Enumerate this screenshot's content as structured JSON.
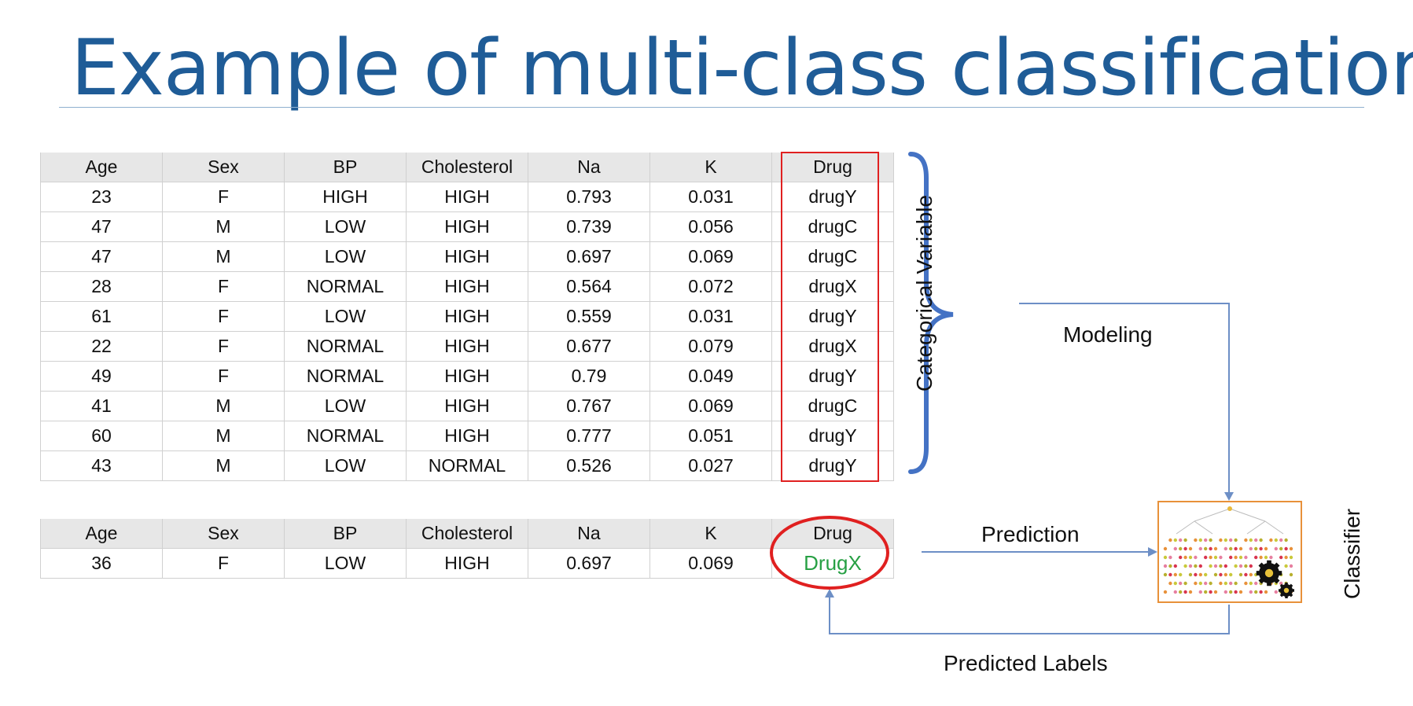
{
  "title": "Example of multi-class classification",
  "columns": [
    "Age",
    "Sex",
    "BP",
    "Cholesterol",
    "Na",
    "K",
    "Drug"
  ],
  "train_rows": [
    [
      "23",
      "F",
      "HIGH",
      "HIGH",
      "0.793",
      "0.031",
      "drugY"
    ],
    [
      "47",
      "M",
      "LOW",
      "HIGH",
      "0.739",
      "0.056",
      "drugC"
    ],
    [
      "47",
      "M",
      "LOW",
      "HIGH",
      "0.697",
      "0.069",
      "drugC"
    ],
    [
      "28",
      "F",
      "NORMAL",
      "HIGH",
      "0.564",
      "0.072",
      "drugX"
    ],
    [
      "61",
      "F",
      "LOW",
      "HIGH",
      "0.559",
      "0.031",
      "drugY"
    ],
    [
      "22",
      "F",
      "NORMAL",
      "HIGH",
      "0.677",
      "0.079",
      "drugX"
    ],
    [
      "49",
      "F",
      "NORMAL",
      "HIGH",
      "0.79",
      "0.049",
      "drugY"
    ],
    [
      "41",
      "M",
      "LOW",
      "HIGH",
      "0.767",
      "0.069",
      "drugC"
    ],
    [
      "60",
      "M",
      "NORMAL",
      "HIGH",
      "0.777",
      "0.051",
      "drugY"
    ],
    [
      "43",
      "M",
      "LOW",
      "NORMAL",
      "0.526",
      "0.027",
      "drugY"
    ]
  ],
  "test_row": [
    "36",
    "F",
    "LOW",
    "HIGH",
    "0.697",
    "0.069",
    "DrugX"
  ],
  "labels": {
    "categorical_variable": "Categorical Variable",
    "modeling": "Modeling",
    "prediction": "Prediction",
    "predicted_labels": "Predicted Labels",
    "classifier": "Classifier"
  },
  "colors": {
    "title": "#1f5c97",
    "brace": "#4472c4",
    "arrow": "#6d8fc6",
    "drug_box": "#e02020",
    "predicted_value": "#27a044",
    "classifier_border": "#e8913a"
  },
  "icons": {
    "classifier": "decision-tree-with-gears-icon"
  }
}
